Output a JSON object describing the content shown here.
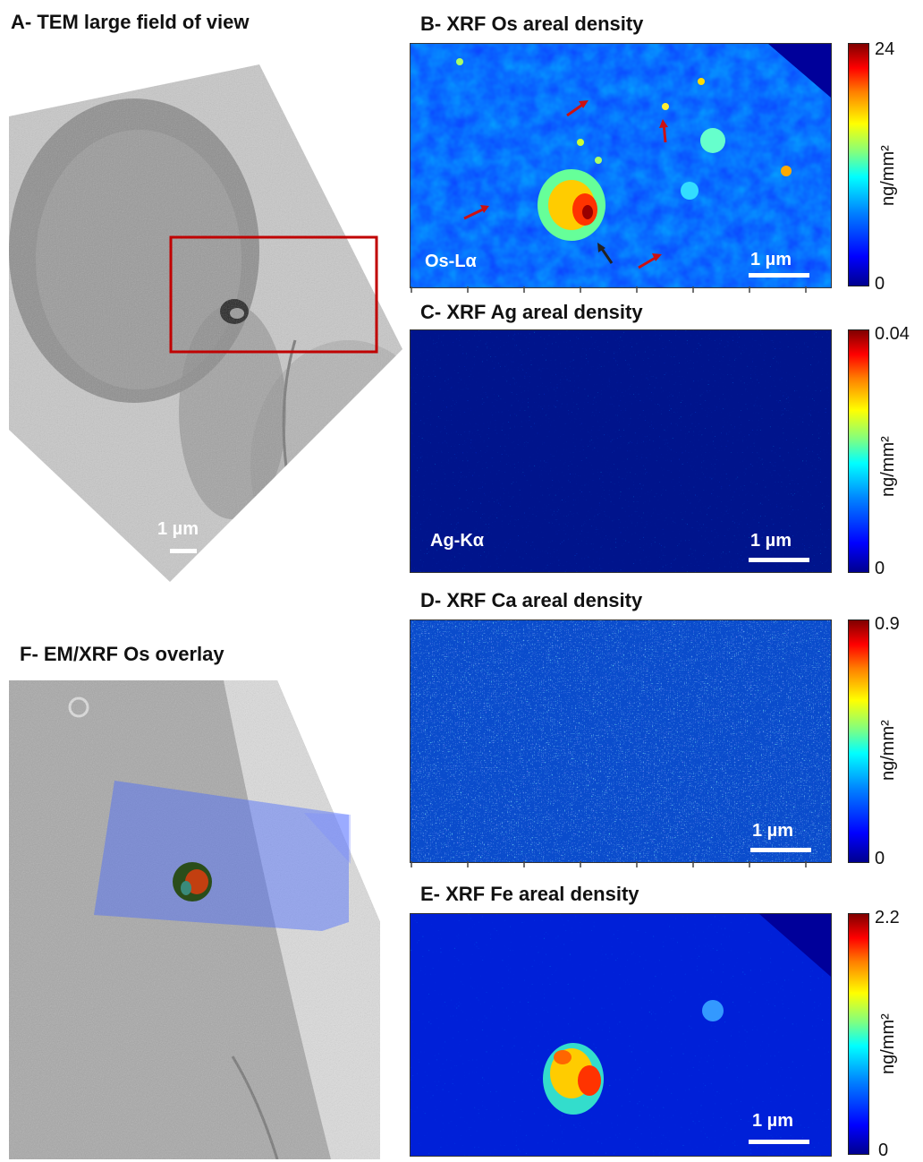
{
  "panels": {
    "a": {
      "title": "A- TEM large field of view",
      "scale": "1 µm"
    },
    "b": {
      "title": "B- XRF Os areal density",
      "line": "Os-Lα",
      "scale": "1 µm",
      "cmax": "24",
      "cmin": "0",
      "unit": "ng/mm²"
    },
    "c": {
      "title": "C- XRF Ag areal density",
      "line": "Ag-Kα",
      "scale": "1 µm",
      "cmax": "0.04",
      "cmin": "0",
      "unit": "ng/mm²"
    },
    "d": {
      "title": "D- XRF Ca areal density",
      "scale": "1 µm",
      "cmax": "0.9",
      "cmin": "0",
      "unit": "ng/mm²"
    },
    "e": {
      "title": "E- XRF Fe areal density",
      "scale": "1 µm",
      "cmax": "2.2",
      "cmin": "0",
      "unit": "ng/mm²"
    },
    "f": {
      "title": "F- EM/XRF Os overlay"
    }
  },
  "colors": {
    "highlight_box": "#c00000",
    "arrow_red": "#cc1111",
    "arrow_dark": "#222222"
  }
}
